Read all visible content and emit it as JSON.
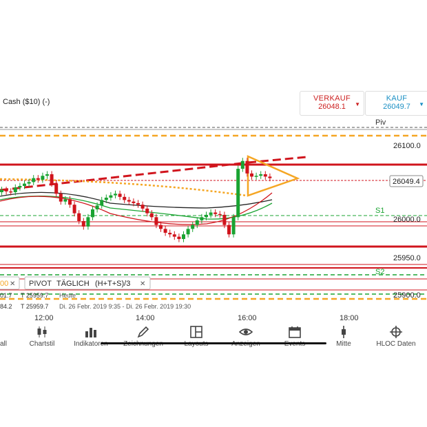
{
  "instrument": {
    "title": "Cash ($10) (-)"
  },
  "quotes": {
    "sell_label": "VERKAUF",
    "sell_value": "26048.1",
    "buy_label": "KAUF",
    "buy_value": "26049.7"
  },
  "chart_labels": {
    "piv": "Piv",
    "s1": "S1",
    "s2": "S2",
    "price_current": "26049.4"
  },
  "price_axis": [
    "26100.0",
    "26000.0",
    "25950.0",
    "25900.0"
  ],
  "time_axis": [
    "12:00",
    "14:00",
    "16:00",
    "18:00"
  ],
  "indicators": {
    "badge_left": "00",
    "pivot_label": "PIVOT",
    "pivot_period": "TÄGLICH",
    "pivot_formula": "(H+T+S)/3"
  },
  "info_rows": [
    {
      "c1": "01.7",
      "c2": "T 25959.7",
      "c3": "Heute"
    },
    {
      "c1": "84.2",
      "c2": "T 25959.7",
      "c3": "Di. 26 Febr. 2019 9:35 - Di. 26 Febr. 2019 19:30"
    }
  ],
  "toolbar": [
    {
      "label": "all",
      "icon": "partial-icon"
    },
    {
      "label": "Chartstil",
      "icon": "candlestick-icon"
    },
    {
      "label": "Indikatoren",
      "icon": "bar-chart-icon"
    },
    {
      "label": "Zeichnungen",
      "icon": "pencil-icon"
    },
    {
      "label": "Layouts",
      "icon": "layout-icon"
    },
    {
      "label": "Anzeigen",
      "icon": "eye-icon"
    },
    {
      "label": "Events",
      "icon": "calendar-icon"
    },
    {
      "label": "Mitte",
      "icon": "center-icon"
    },
    {
      "label": "HLOC Daten",
      "icon": "crosshair-icon"
    }
  ],
  "colors": {
    "red": "#d0141c",
    "orange": "#f5a623",
    "green": "#1aa332",
    "candle_up": "#1aa332",
    "candle_down": "#d0141c",
    "sell": "#cc1f1f",
    "buy": "#1a8fc4"
  },
  "chart_data": {
    "type": "candlestick",
    "levels": {
      "resistance_top": 26070,
      "support_bottom": 25960,
      "pivot": 26115,
      "s1": 26010,
      "s2": 25925,
      "current": 26049.4
    },
    "ylim": [
      25890,
      26130
    ],
    "xlabels": [
      "12:00",
      "14:00",
      "16:00",
      "18:00"
    ],
    "closes": [
      26035,
      26033,
      26032,
      26038,
      26040,
      26043,
      26045,
      26050,
      26048,
      26053,
      26055,
      26043,
      26030,
      26020,
      26023,
      26016,
      26005,
      25995,
      25988,
      26000,
      26010,
      26015,
      26022,
      26025,
      26028,
      26030,
      26026,
      26022,
      26020,
      26018,
      26016,
      26011,
      26005,
      26000,
      25990,
      25985,
      25980,
      25978,
      25975,
      25972,
      25978,
      25985,
      25990,
      25996,
      26000,
      26003,
      26006,
      26004,
      26003,
      25990,
      25978,
      26000,
      26062,
      26072,
      26056,
      26052,
      26053,
      26055,
      26052,
      26050
    ]
  }
}
